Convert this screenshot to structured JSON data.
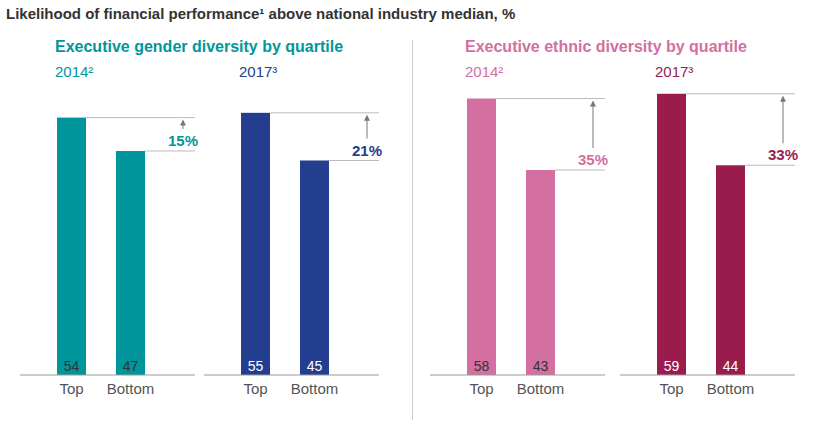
{
  "title": "Likelihood of financial performance¹ above national industry median, %",
  "chart_data": [
    {
      "type": "bar",
      "title": "Executive gender diversity by quartile",
      "subtitle": "2014²",
      "categories": [
        "Top",
        "Bottom"
      ],
      "values": [
        54,
        47
      ],
      "color": "#00969b",
      "annotation": "15%",
      "ylim": [
        0,
        60
      ],
      "data_labels": true,
      "tick_labels": "x"
    },
    {
      "type": "bar",
      "subtitle": "2017³",
      "categories": [
        "Top",
        "Bottom"
      ],
      "values": [
        55,
        45
      ],
      "color": "#233e8e",
      "annotation": "21%",
      "ylim": [
        0,
        60
      ],
      "data_labels": true,
      "tick_labels": "x"
    },
    {
      "type": "bar",
      "title": "Executive ethnic diversity by quartile",
      "subtitle": "2014²",
      "categories": [
        "Top",
        "Bottom"
      ],
      "values": [
        58,
        43
      ],
      "color": "#d36fa1",
      "annotation": "35%",
      "ylim": [
        0,
        60
      ],
      "data_labels": true,
      "tick_labels": "x"
    },
    {
      "type": "bar",
      "subtitle": "2017³",
      "categories": [
        "Top",
        "Bottom"
      ],
      "values": [
        59,
        44
      ],
      "color": "#9a1c4d",
      "annotation": "33%",
      "ylim": [
        0,
        60
      ],
      "data_labels": true,
      "tick_labels": "x"
    }
  ]
}
